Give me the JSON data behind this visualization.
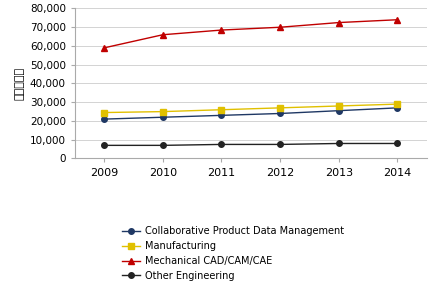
{
  "years": [
    2009,
    2010,
    2011,
    2012,
    2013,
    2014
  ],
  "series": [
    {
      "label": "Collaborative Product Data Management",
      "values": [
        21000,
        22000,
        23000,
        24000,
        25500,
        27000
      ],
      "color": "#1f3864",
      "marker": "o",
      "markersize": 4,
      "linestyle": "-"
    },
    {
      "label": "Manufacturing",
      "values": [
        24500,
        25000,
        26000,
        27000,
        28000,
        29000
      ],
      "color": "#e0c000",
      "marker": "s",
      "markersize": 4,
      "linestyle": "-"
    },
    {
      "label": "Mechanical CAD/CAM/CAE",
      "values": [
        59000,
        66000,
        68500,
        70000,
        72500,
        74000
      ],
      "color": "#c00000",
      "marker": "^",
      "markersize": 5,
      "linestyle": "-"
    },
    {
      "label": "Other Engineering",
      "values": [
        7000,
        7000,
        7500,
        7500,
        8000,
        8000
      ],
      "color": "#222222",
      "marker": "o",
      "markersize": 4,
      "linestyle": "-"
    }
  ],
  "ylabel": "（百万円）",
  "ylim": [
    0,
    80000
  ],
  "yticks": [
    0,
    10000,
    20000,
    30000,
    40000,
    50000,
    60000,
    70000,
    80000
  ],
  "background_color": "#ffffff",
  "plot_bg_color": "#ffffff",
  "grid_color": "#cccccc",
  "linewidth": 1.0
}
